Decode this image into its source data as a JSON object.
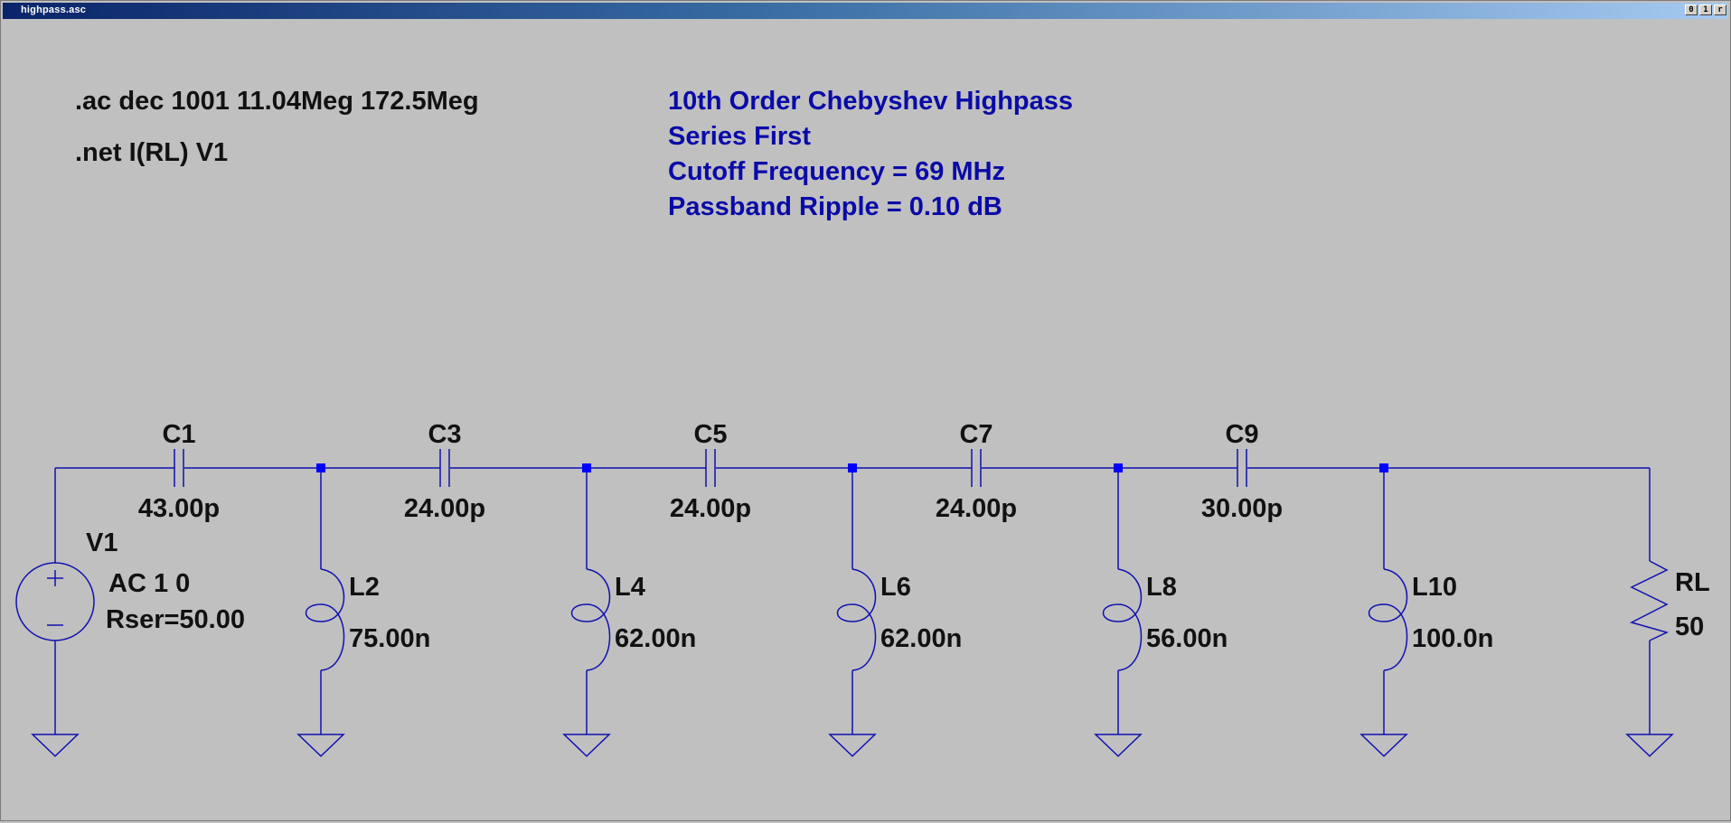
{
  "window": {
    "title": "highpass.asc",
    "buttons": {
      "minimize": "0",
      "restore": "1",
      "close": "r"
    }
  },
  "directives": {
    "ac": ".ac dec 1001 11.04Meg 172.5Meg",
    "net": ".net I(RL) V1"
  },
  "comment": {
    "line1": "10th Order Chebyshev Highpass",
    "line2": "Series First",
    "line3": "Cutoff Frequency = 69 MHz",
    "line4": "Passband Ripple = 0.10 dB"
  },
  "source": {
    "name": "V1",
    "value": "AC 1 0",
    "rser": "Rser=50.00"
  },
  "capacitors": [
    {
      "name": "C1",
      "value": "43.00p"
    },
    {
      "name": "C3",
      "value": "24.00p"
    },
    {
      "name": "C5",
      "value": "24.00p"
    },
    {
      "name": "C7",
      "value": "24.00p"
    },
    {
      "name": "C9",
      "value": "30.00p"
    }
  ],
  "inductors": [
    {
      "name": "L2",
      "value": "75.00n"
    },
    {
      "name": "L4",
      "value": "62.00n"
    },
    {
      "name": "L6",
      "value": "62.00n"
    },
    {
      "name": "L8",
      "value": "56.00n"
    },
    {
      "name": "L10",
      "value": "100.0n"
    }
  ],
  "load": {
    "name": "RL",
    "value": "50"
  },
  "colors": {
    "wire": "#1010b0",
    "junction": "#0000ff",
    "text_black": "#111111",
    "text_blue": "#0a0aa8",
    "background": "#c0c0c0"
  }
}
